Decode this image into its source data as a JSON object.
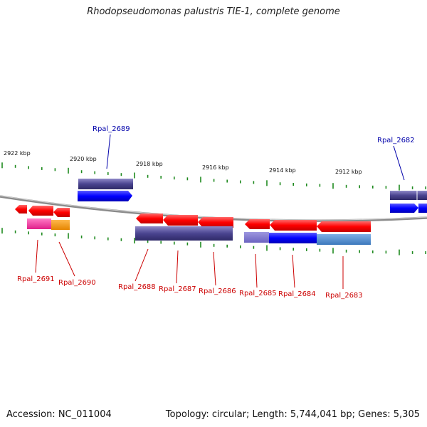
{
  "title": "Rhodopseudomonas palustris TIE-1, complete genome",
  "footer": {
    "accession": "Accession: NC_011004",
    "topology": "Topology: circular; Length: 5,744,041 bp; Genes: 5,305"
  },
  "colors": {
    "backbone": "#8a8a8a",
    "tick": "#1f8a1f",
    "gene_red": "#ff0000",
    "gene_blue": "#0000ff",
    "gene_slate": "#4a4490",
    "gene_pink": "#ff3fa8",
    "gene_orange": "#ff9900",
    "gene_steel": "#4f8ed0",
    "label_red": "#cc0000",
    "label_blue": "#0000aa"
  },
  "scale_labels": [
    "2922 kbp",
    "2920 kbp",
    "2918 kbp",
    "2916 kbp",
    "2914 kbp",
    "2912 kbp"
  ],
  "gene_labels": [
    {
      "name": "Rpal_2689",
      "color": "blue"
    },
    {
      "name": "Rpal_2682",
      "color": "blue"
    },
    {
      "name": "Rpal_2691",
      "color": "red"
    },
    {
      "name": "Rpal_2690",
      "color": "red"
    },
    {
      "name": "Rpal_2688",
      "color": "red"
    },
    {
      "name": "Rpal_2687",
      "color": "red"
    },
    {
      "name": "Rpal_2686",
      "color": "red"
    },
    {
      "name": "Rpal_2685",
      "color": "red"
    },
    {
      "name": "Rpal_2684",
      "color": "red"
    },
    {
      "name": "Rpal_2683",
      "color": "red"
    }
  ]
}
